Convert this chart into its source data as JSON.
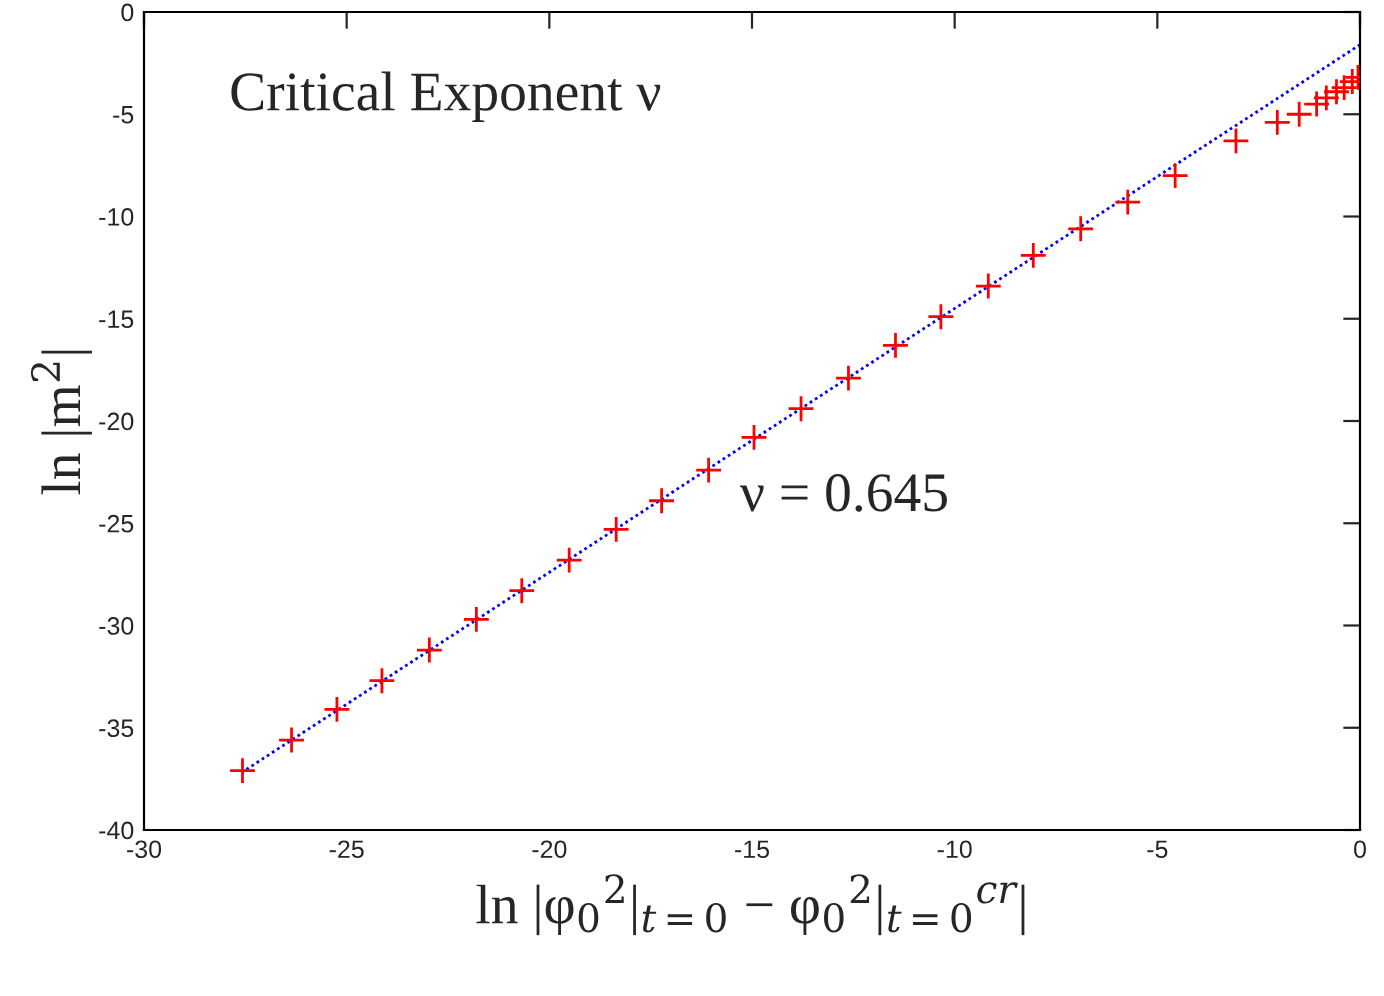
{
  "chart_data": {
    "type": "scatter",
    "xlabel": "ln |φ$_{0}$$^{2}$|$_{t=0}$ − φ$_{0}$$^{2}$|$_{t=0}$$^{cr}$|",
    "ylabel": "ln |m$^{2}$|",
    "annotations": [
      "Critical Exponent ν",
      "ν = 0.645"
    ],
    "xlim": [
      -30,
      0
    ],
    "ylim": [
      -40,
      0
    ],
    "xticks": [
      -30,
      -25,
      -20,
      -15,
      -10,
      -5,
      0
    ],
    "yticks": [
      -40,
      -35,
      -30,
      -25,
      -20,
      -15,
      -10,
      -5,
      0
    ],
    "grid": false,
    "legend": false,
    "series": [
      {
        "color": "#ff0000",
        "marker": "cross",
        "x": [
          -27.57,
          -26.36,
          -25.24,
          -24.13,
          -22.96,
          -21.8,
          -20.68,
          -19.51,
          -18.35,
          -17.23,
          -16.07,
          -14.95,
          -13.79,
          -12.62,
          -11.46,
          -10.34,
          -9.17,
          -8.06,
          -6.89,
          -5.73,
          -4.56,
          -3.06,
          -2.04,
          -1.5,
          -1.07,
          -0.83,
          -0.58,
          -0.39,
          -0.19,
          -0.05
        ],
        "values": [
          -37.1,
          -35.6,
          -34.1,
          -32.7,
          -31.2,
          -29.7,
          -28.3,
          -26.8,
          -25.3,
          -23.9,
          -22.4,
          -20.8,
          -19.4,
          -17.9,
          -16.3,
          -14.9,
          -13.4,
          -11.9,
          -10.6,
          -9.3,
          -8.0,
          -6.3,
          -5.4,
          -5.0,
          -4.5,
          -4.2,
          -3.9,
          -3.7,
          -3.4,
          -3.2
        ]
      },
      {
        "type": "line",
        "color": "#0000ff",
        "line_style": "dotted",
        "marker": "none",
        "x": [
          -27.6,
          0
        ],
        "values": [
          -37.2,
          -1.6
        ]
      }
    ]
  }
}
